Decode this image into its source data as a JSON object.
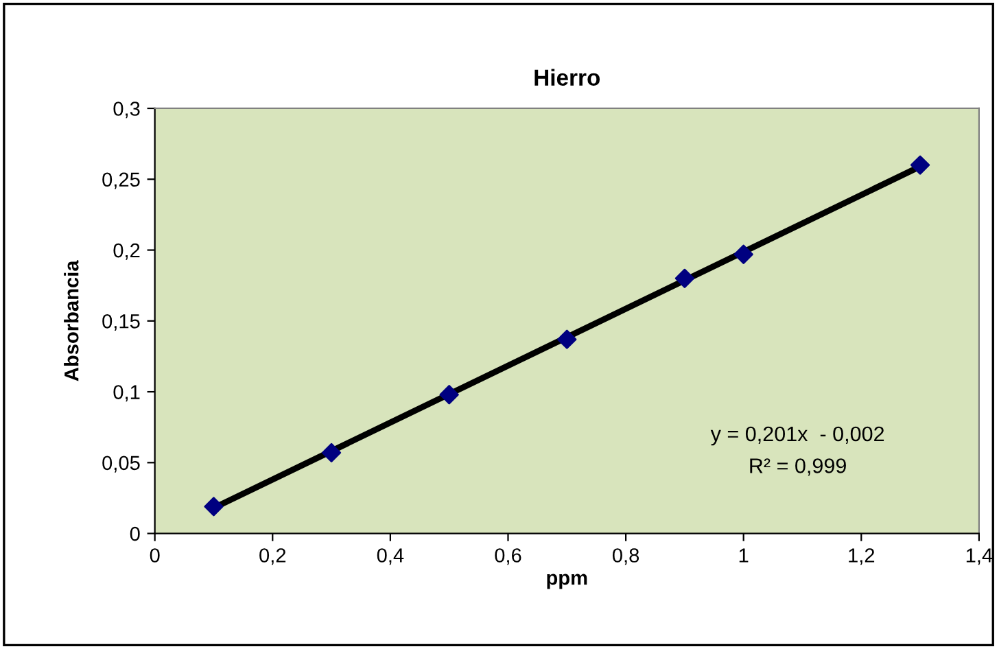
{
  "chart_data": {
    "type": "scatter",
    "title": "Hierro",
    "xlabel": "ppm",
    "ylabel": "Absorbancia",
    "x": [
      0.1,
      0.3,
      0.5,
      0.7,
      0.9,
      1.0,
      1.3
    ],
    "series": [
      {
        "color": "#000080",
        "marker": "diamond",
        "values": [
          0.019,
          0.057,
          0.098,
          0.137,
          0.18,
          0.197,
          0.26
        ]
      },
      {
        "type": "line",
        "color": "#000000",
        "marker": "none",
        "line_style": "solid",
        "x": [
          0.1,
          1.3
        ],
        "values": [
          0.018,
          0.259
        ]
      }
    ],
    "xlim": [
      0,
      1.4
    ],
    "ylim": [
      0,
      0.3
    ],
    "xticks": [
      0,
      {
        "value": 0.2,
        "label": "0,2"
      },
      {
        "value": 0.4,
        "label": "0,4"
      },
      {
        "value": 0.6,
        "label": "0,6"
      },
      {
        "value": 0.8,
        "label": "0,8"
      },
      1,
      {
        "value": 1.2,
        "label": "1,2"
      },
      {
        "value": 1.4,
        "label": "1,4"
      }
    ],
    "yticks": [
      0,
      {
        "value": 0.05,
        "label": "0,05"
      },
      {
        "value": 0.1,
        "label": "0,1"
      },
      {
        "value": 0.15,
        "label": "0,15"
      },
      {
        "value": 0.2,
        "label": "0,2"
      },
      {
        "value": 0.25,
        "label": "0,25"
      },
      {
        "value": 0.3,
        "label": "0,3"
      }
    ],
    "annotations": [
      "y = 0,201x  - 0,002",
      "R² = 0,999"
    ],
    "grid": false
  }
}
